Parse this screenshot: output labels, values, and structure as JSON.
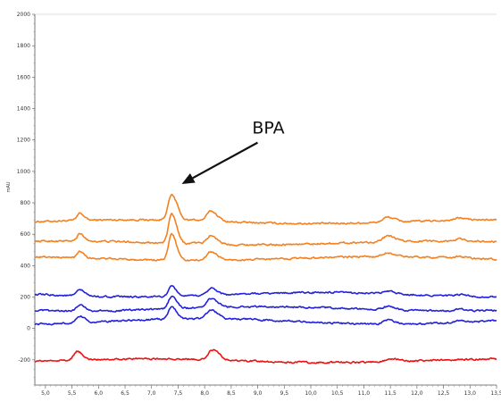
{
  "chart_data": {
    "type": "line",
    "title": "",
    "xlabel": "",
    "ylabel": "mAU",
    "xlim": [
      4.8,
      13.5
    ],
    "ylim": [
      -360,
      2000
    ],
    "x_ticks": [
      "5,0",
      "5,5",
      "6,0",
      "6,5",
      "7,0",
      "7,5",
      "8,0",
      "8,5",
      "9,0",
      "9,5",
      "10,0",
      "10,5",
      "11,0",
      "11,5",
      "12,0",
      "12,5",
      "13,0",
      "13,5"
    ],
    "y_ticks": [
      2000,
      1800,
      1600,
      1400,
      1200,
      1000,
      800,
      600,
      400,
      200,
      0,
      -200
    ],
    "grid": false,
    "legend": "none",
    "annotation": {
      "text": "BPA",
      "x": 7.4,
      "y": 840,
      "text_x": 9.2,
      "text_y": 1240
    },
    "series": [
      {
        "color": "#f5801f",
        "baseline": 680,
        "drift": 12,
        "peaks": [
          [
            5.65,
            45,
            0.05
          ],
          [
            7.38,
            160,
            0.07
          ],
          [
            7.8,
            8,
            0.05
          ],
          [
            8.12,
            65,
            0.08
          ],
          [
            11.45,
            32,
            0.09
          ],
          [
            12.8,
            14,
            0.08
          ]
        ]
      },
      {
        "color": "#f5801f",
        "baseline": 545,
        "drift": 12,
        "peaks": [
          [
            5.65,
            45,
            0.05
          ],
          [
            7.38,
            185,
            0.06
          ],
          [
            7.8,
            8,
            0.05
          ],
          [
            8.12,
            55,
            0.08
          ],
          [
            11.45,
            35,
            0.09
          ],
          [
            12.8,
            14,
            0.08
          ]
        ]
      },
      {
        "color": "#f5801f",
        "baseline": 445,
        "drift": 12,
        "peaks": [
          [
            5.65,
            45,
            0.05
          ],
          [
            7.38,
            165,
            0.06
          ],
          [
            8.12,
            55,
            0.08
          ],
          [
            11.45,
            25,
            0.09
          ],
          [
            12.8,
            12,
            0.08
          ]
        ]
      },
      {
        "color": "#2222dd",
        "baseline": 215,
        "drift": 14,
        "peaks": [
          [
            5.65,
            38,
            0.06
          ],
          [
            7.38,
            62,
            0.06
          ],
          [
            8.12,
            45,
            0.08
          ],
          [
            11.45,
            15,
            0.09
          ],
          [
            12.8,
            10,
            0.08
          ]
        ]
      },
      {
        "color": "#2222dd",
        "baseline": 125,
        "drift": 14,
        "peaks": [
          [
            5.65,
            42,
            0.06
          ],
          [
            7.38,
            80,
            0.06
          ],
          [
            8.12,
            55,
            0.08
          ],
          [
            11.45,
            22,
            0.09
          ],
          [
            12.8,
            10,
            0.08
          ]
        ]
      },
      {
        "color": "#2222dd",
        "baseline": 45,
        "drift": 18,
        "peaks": [
          [
            5.65,
            42,
            0.06
          ],
          [
            7.38,
            80,
            0.06
          ],
          [
            8.12,
            55,
            0.08
          ],
          [
            11.45,
            28,
            0.09
          ],
          [
            12.8,
            10,
            0.08
          ]
        ]
      },
      {
        "color": "#ee1111",
        "baseline": -205,
        "drift": 12,
        "peaks": [
          [
            5.6,
            55,
            0.06
          ],
          [
            8.15,
            65,
            0.08
          ],
          [
            11.5,
            18,
            0.1
          ]
        ]
      }
    ]
  }
}
